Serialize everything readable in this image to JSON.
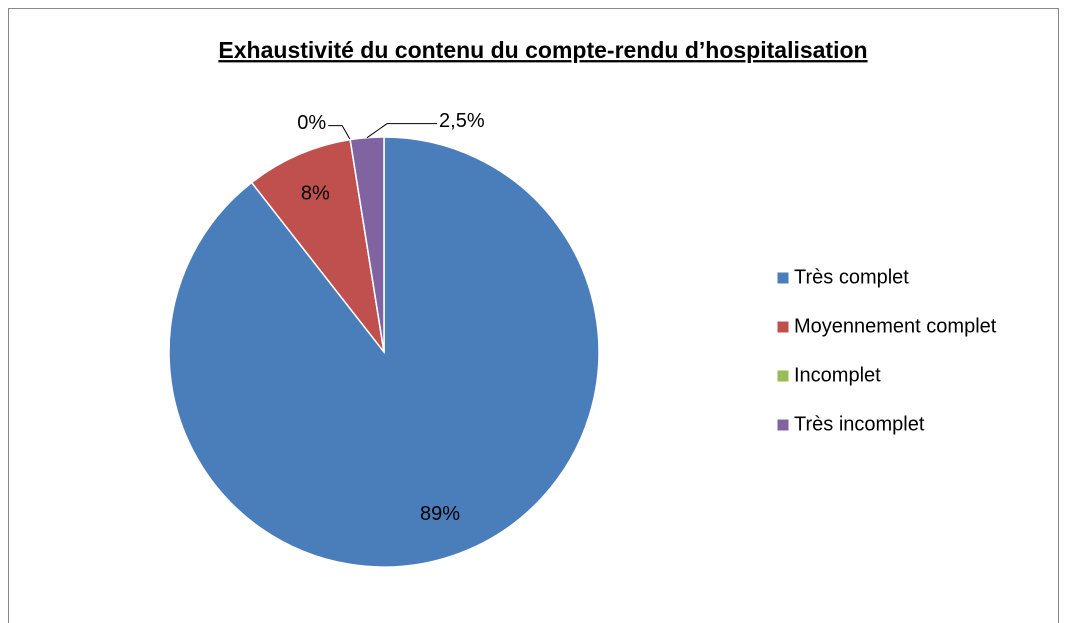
{
  "chart_data": {
    "type": "pie",
    "title": "Exhaustivité du contenu du compte-rendu d’hospitalisation",
    "categories": [
      "Très complet",
      "Moyennement complet",
      "Incomplet",
      "Très incomplet"
    ],
    "values": [
      89,
      8,
      0,
      2.5
    ],
    "value_labels": [
      "89%",
      "8%",
      "0%",
      "2,5%"
    ],
    "colors": [
      "#4a7ebb",
      "#c0504d",
      "#9bbb59",
      "#8064a2"
    ],
    "legend": "right"
  }
}
